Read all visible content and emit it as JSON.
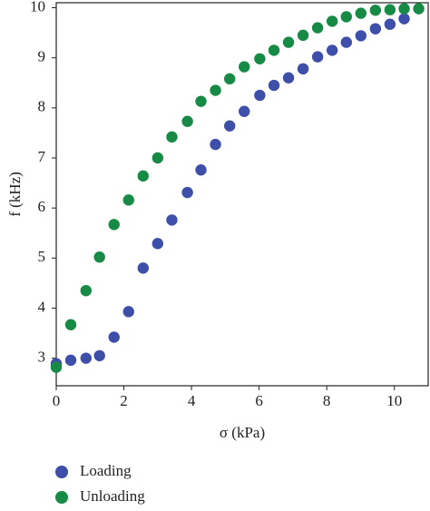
{
  "chart_data": {
    "type": "scatter",
    "xlabel": "σ (kPa)",
    "ylabel": "f (kHz)",
    "xlim": [
      0,
      11
    ],
    "ylim": [
      2.45,
      10.1
    ],
    "xticks": [
      0,
      2,
      4,
      6,
      8,
      10
    ],
    "yticks": [
      3,
      4,
      5,
      6,
      7,
      8,
      9,
      10
    ],
    "legend": "bottom-left",
    "series": [
      {
        "name": "Loading",
        "color": "#3d4fa8",
        "x": [
          0,
          0.43,
          0.88,
          1.28,
          1.71,
          2.14,
          2.57,
          3.0,
          3.42,
          3.88,
          4.28,
          4.71,
          5.13,
          5.56,
          6.02,
          6.44,
          6.87,
          7.3,
          7.73,
          8.16,
          8.58,
          9.01,
          9.44,
          9.87,
          10.29
        ],
        "values": [
          2.89,
          2.96,
          3.0,
          3.05,
          3.42,
          3.93,
          4.8,
          5.29,
          5.76,
          6.31,
          6.76,
          7.27,
          7.64,
          7.93,
          8.25,
          8.45,
          8.6,
          8.78,
          9.02,
          9.15,
          9.31,
          9.44,
          9.58,
          9.67,
          9.78
        ]
      },
      {
        "name": "Unloading",
        "color": "#178a45",
        "x": [
          0,
          0.43,
          0.88,
          1.28,
          1.71,
          2.14,
          2.57,
          3.0,
          3.42,
          3.88,
          4.28,
          4.71,
          5.13,
          5.56,
          6.02,
          6.44,
          6.87,
          7.3,
          7.73,
          8.16,
          8.58,
          9.01,
          9.44,
          9.87,
          10.29,
          10.72
        ],
        "values": [
          2.82,
          3.67,
          4.35,
          5.02,
          5.67,
          6.16,
          6.64,
          7.0,
          7.42,
          7.73,
          8.13,
          8.35,
          8.58,
          8.82,
          8.98,
          9.15,
          9.31,
          9.45,
          9.6,
          9.73,
          9.82,
          9.89,
          9.95,
          9.96,
          9.98,
          9.98
        ]
      }
    ]
  }
}
